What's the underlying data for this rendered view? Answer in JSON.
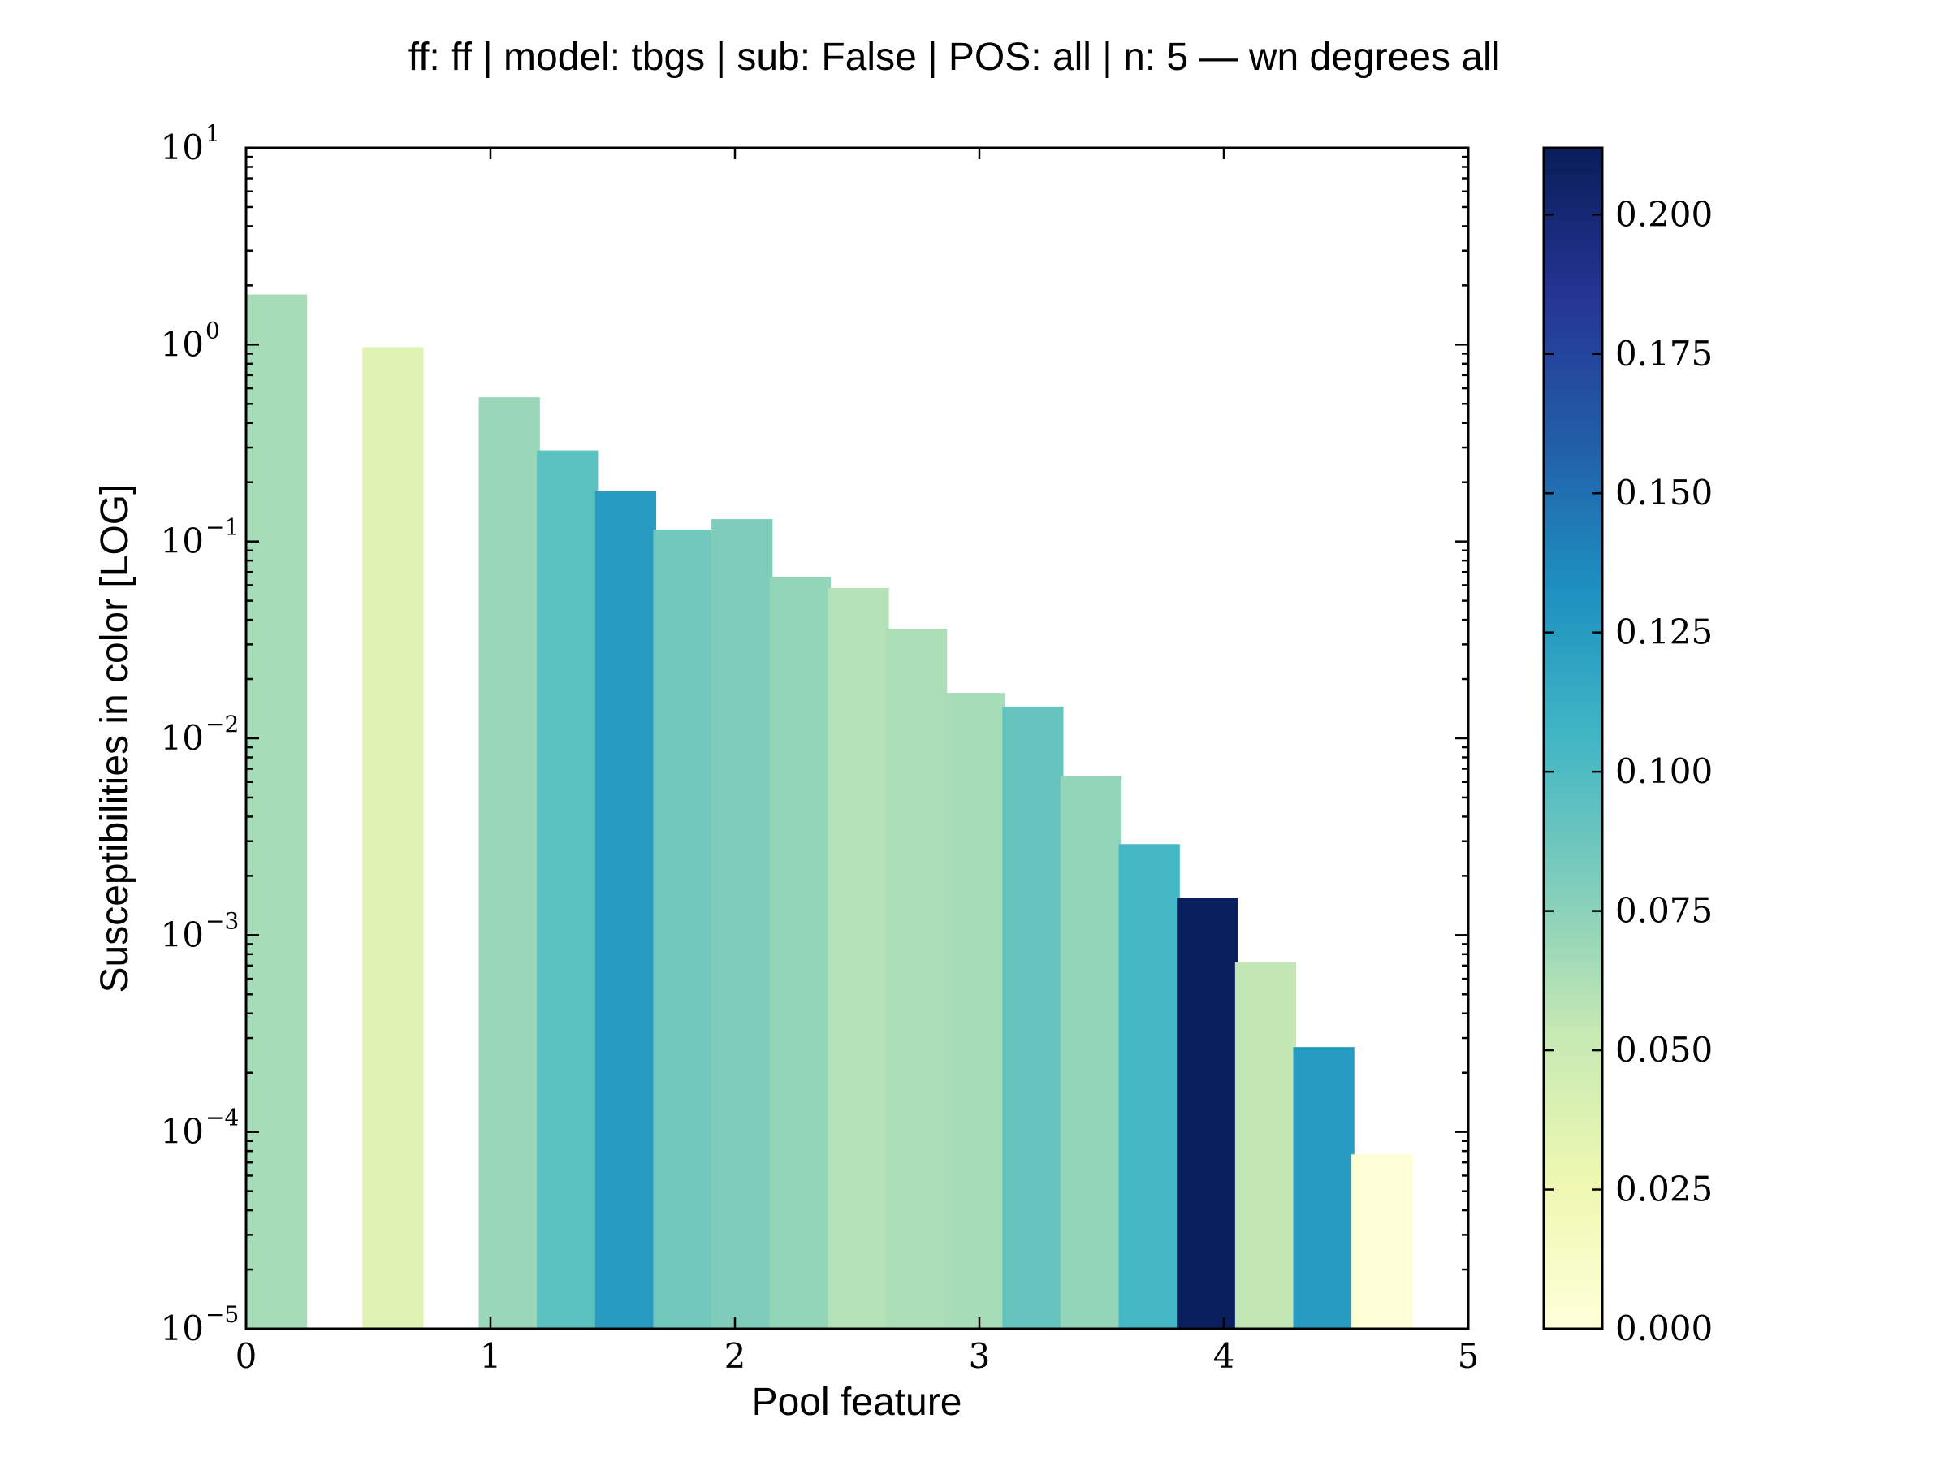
{
  "chart_data": {
    "type": "bar",
    "title": "ff: ff | model: tbgs | sub: False | POS: all | n: 5 — wn degrees all",
    "xlabel": "Pool feature",
    "ylabel": "Susceptibilities in color [LOG]",
    "xlim": [
      0,
      5
    ],
    "ylim": [
      1e-05,
      10
    ],
    "yscale": "log",
    "grid": false,
    "legend": "none",
    "bar_width": 0.25,
    "x_ticks": [
      "0",
      "1",
      "2",
      "3",
      "4",
      "5"
    ],
    "y_ticks": [
      {
        "base": "10",
        "exp": "1"
      },
      {
        "base": "10",
        "exp": "0"
      },
      {
        "base": "10",
        "exp": "−1"
      },
      {
        "base": "10",
        "exp": "−2"
      },
      {
        "base": "10",
        "exp": "−3"
      },
      {
        "base": "10",
        "exp": "−4"
      },
      {
        "base": "10",
        "exp": "−5"
      }
    ],
    "bars": [
      {
        "x": 0.0,
        "value": 1.8,
        "color_value": 0.065
      },
      {
        "x": 0.476,
        "value": 0.97,
        "color_value": 0.035
      },
      {
        "x": 0.952,
        "value": 0.54,
        "color_value": 0.07
      },
      {
        "x": 1.19,
        "value": 0.29,
        "color_value": 0.095
      },
      {
        "x": 1.428,
        "value": 0.18,
        "color_value": 0.125
      },
      {
        "x": 1.666,
        "value": 0.115,
        "color_value": 0.085
      },
      {
        "x": 1.904,
        "value": 0.13,
        "color_value": 0.08
      },
      {
        "x": 2.142,
        "value": 0.066,
        "color_value": 0.072
      },
      {
        "x": 2.38,
        "value": 0.058,
        "color_value": 0.06
      },
      {
        "x": 2.618,
        "value": 0.036,
        "color_value": 0.063
      },
      {
        "x": 2.856,
        "value": 0.017,
        "color_value": 0.065
      },
      {
        "x": 3.094,
        "value": 0.0145,
        "color_value": 0.09
      },
      {
        "x": 3.332,
        "value": 0.0064,
        "color_value": 0.072
      },
      {
        "x": 3.57,
        "value": 0.0029,
        "color_value": 0.105
      },
      {
        "x": 3.808,
        "value": 0.00155,
        "color_value": 0.21
      },
      {
        "x": 4.046,
        "value": 0.00073,
        "color_value": 0.055
      },
      {
        "x": 4.284,
        "value": 0.00027,
        "color_value": 0.125
      },
      {
        "x": 4.522,
        "value": 7.7e-05,
        "color_value": 0.002
      }
    ],
    "colorbar": {
      "colormap": "YlGnBu",
      "range": [
        0,
        0.212
      ],
      "ticks": [
        "0.000",
        "0.025",
        "0.050",
        "0.075",
        "0.100",
        "0.125",
        "0.150",
        "0.175",
        "0.200"
      ],
      "tick_values": [
        0,
        0.025,
        0.05,
        0.075,
        0.1,
        0.125,
        0.15,
        0.175,
        0.2
      ]
    }
  },
  "colormap_stops": [
    "#ffffd9",
    "#edf8b1",
    "#c7e9b4",
    "#7fcdbb",
    "#41b6c4",
    "#1d91c0",
    "#225ea8",
    "#253494",
    "#081d58"
  ]
}
